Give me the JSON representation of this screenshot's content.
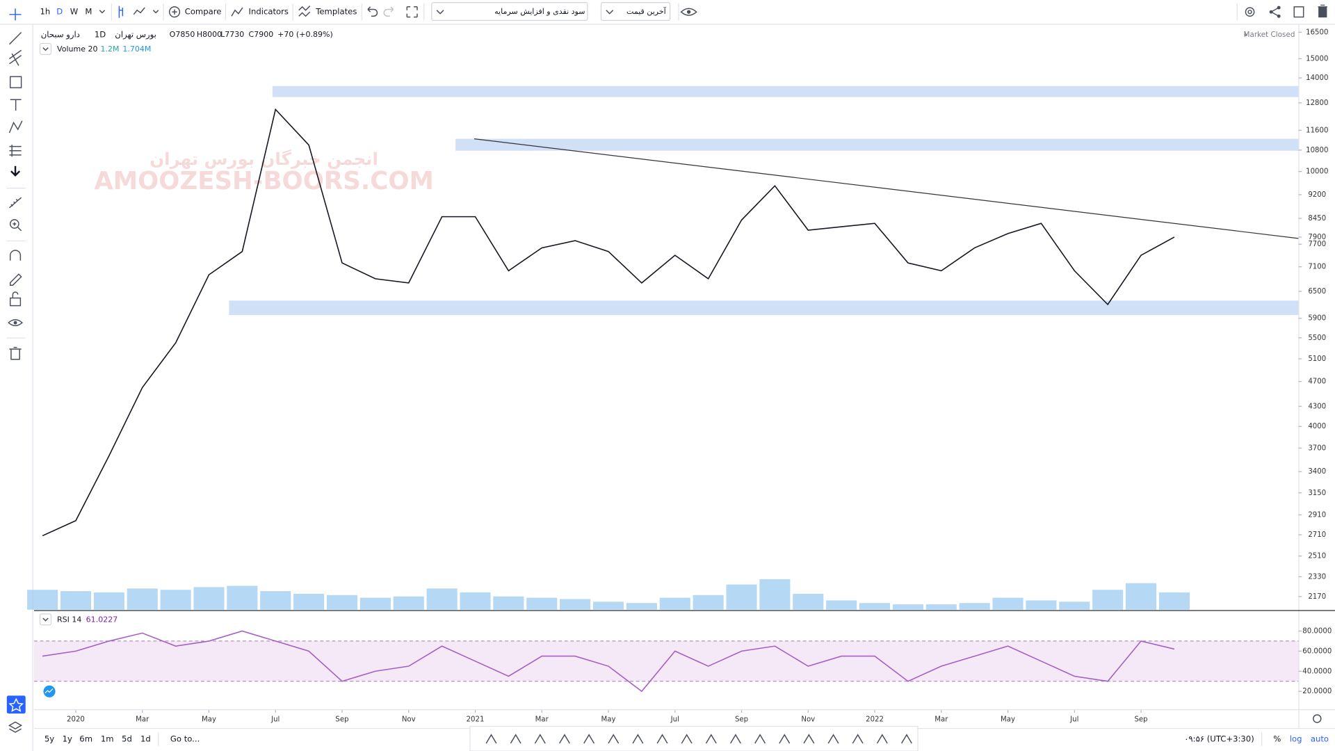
{
  "toolbar": {
    "intervals": [
      "1h",
      "D",
      "W",
      "M"
    ],
    "compare": "Compare",
    "indicators": "Indicators",
    "templates": "Templates",
    "dividends": "سود نقدی و افزایش سرمایه",
    "price_source": "آخرین قیمت"
  },
  "status": "Market Closed",
  "watermark": [
    "انجمن خبرگان بورس تهران",
    "AMOOZESH-BOORS.COM"
  ],
  "legend": {
    "symbol": "دارو سبحان",
    "interval": "1D",
    "exchange": "بورس تهران",
    "open": "O7850",
    "high": "H8000",
    "low": "L7730",
    "close": "C7900",
    "change": "+70 (+0.89%)"
  },
  "volume_legend": {
    "name": "Volume 20",
    "value": "1.2M",
    "average": "1.704M"
  },
  "chart_data": [
    {
      "type": "line",
      "log": true,
      "grid": false,
      "x": [
        "2019-12",
        "2020-01",
        "2020-02",
        "2020-03",
        "2020-04",
        "2020-05",
        "2020-06",
        "2020-07",
        "2020-08",
        "2020-09",
        "2020-10",
        "2020-11",
        "2020-12",
        "2021-01",
        "2021-02",
        "2021-03",
        "2021-04",
        "2021-05",
        "2021-06",
        "2021-07",
        "2021-08",
        "2021-09",
        "2021-10",
        "2021-11",
        "2021-12",
        "2022-01",
        "2022-02",
        "2022-03",
        "2022-04",
        "2022-05",
        "2022-06",
        "2022-07",
        "2022-08",
        "2022-09",
        "2022-10"
      ],
      "series": [
        {
          "color": "#131722",
          "values": [
            2700,
            2850,
            3600,
            4600,
            5400,
            6900,
            7500,
            12500,
            11000,
            7200,
            6800,
            6700,
            8500,
            8500,
            7000,
            7600,
            7800,
            7500,
            6700,
            7400,
            6800,
            8400,
            9500,
            8100,
            8200,
            8300,
            7200,
            7000,
            7600,
            8000,
            8300,
            7000,
            6200,
            7400,
            7900
          ]
        }
      ],
      "volume": {
        "name": "Volume 20",
        "color": "#9ccbf0",
        "vlim": [
          0,
          11000000
        ],
        "values": [
          1500000,
          1400000,
          1300000,
          1600000,
          1500000,
          1700000,
          1800000,
          1400000,
          1200000,
          1100000,
          900000,
          1000000,
          1600000,
          1300000,
          1000000,
          900000,
          800000,
          600000,
          500000,
          900000,
          1100000,
          1900000,
          2300000,
          1200000,
          700000,
          500000,
          400000,
          400000,
          500000,
          900000,
          700000,
          600000,
          1500000,
          2000000,
          1300000
        ]
      },
      "ylim": [
        2070,
        16900
      ],
      "yticks": [
        16500,
        15000,
        14000,
        12800,
        11600,
        10800,
        10000,
        9200,
        8450,
        7900,
        7700,
        7100,
        6500,
        5900,
        5500,
        5100,
        4700,
        4300,
        4000,
        3700,
        3400,
        3150,
        2910,
        2710,
        2510,
        2330,
        2170
      ]
    },
    {
      "type": "line",
      "title": "RSI 14",
      "current": "61.0227",
      "bands": [
        30,
        70
      ],
      "x": [
        "2019-12",
        "2020-01",
        "2020-02",
        "2020-03",
        "2020-04",
        "2020-05",
        "2020-06",
        "2020-07",
        "2020-08",
        "2020-09",
        "2020-10",
        "2020-11",
        "2020-12",
        "2021-01",
        "2021-02",
        "2021-03",
        "2021-04",
        "2021-05",
        "2021-06",
        "2021-07",
        "2021-08",
        "2021-09",
        "2021-10",
        "2021-11",
        "2021-12",
        "2022-01",
        "2022-02",
        "2022-03",
        "2022-04",
        "2022-05",
        "2022-06",
        "2022-07",
        "2022-08",
        "2022-09",
        "2022-10"
      ],
      "series": [
        {
          "color": "#a65fc4",
          "values": [
            55,
            60,
            70,
            78,
            65,
            70,
            80,
            70,
            60,
            30,
            40,
            45,
            65,
            50,
            35,
            55,
            55,
            45,
            20,
            60,
            45,
            60,
            65,
            45,
            55,
            55,
            30,
            45,
            55,
            65,
            50,
            35,
            30,
            70,
            62
          ]
        }
      ],
      "ylim": [
        0,
        100
      ],
      "yticks": [
        {
          "value": 80,
          "label": "80.0000"
        },
        {
          "value": 60,
          "label": "60.0000"
        },
        {
          "value": 40,
          "label": "40.0000"
        },
        {
          "value": 20,
          "label": "20.0000"
        }
      ],
      "xticks": [
        {
          "value": "2020-01",
          "label": "2020"
        },
        {
          "value": "2020-03",
          "label": "Mar"
        },
        {
          "value": "2020-05",
          "label": "May"
        },
        {
          "value": "2020-07",
          "label": "Jul"
        },
        {
          "value": "2020-09",
          "label": "Sep"
        },
        {
          "value": "2020-11",
          "label": "Nov"
        },
        {
          "value": "2021-01",
          "label": "2021"
        },
        {
          "value": "2021-03",
          "label": "Mar"
        },
        {
          "value": "2021-05",
          "label": "May"
        },
        {
          "value": "2021-07",
          "label": "Jul"
        },
        {
          "value": "2021-09",
          "label": "Sep"
        },
        {
          "value": "2021-11",
          "label": "Nov"
        },
        {
          "value": "2022-01",
          "label": "2022"
        },
        {
          "value": "2022-03",
          "label": "Mar"
        },
        {
          "value": "2022-05",
          "label": "May"
        },
        {
          "value": "2022-07",
          "label": "Jul"
        },
        {
          "value": "2022-09",
          "label": "Sep"
        }
      ]
    }
  ],
  "bottom_bar": {
    "ranges": [
      "5y",
      "1y",
      "6m",
      "1m",
      "5d",
      "1d"
    ],
    "goto": "Go to...",
    "clock": "۰۹:۵۶ (UTC+3:30)",
    "percent": "%",
    "log": "log",
    "auto": "auto"
  }
}
